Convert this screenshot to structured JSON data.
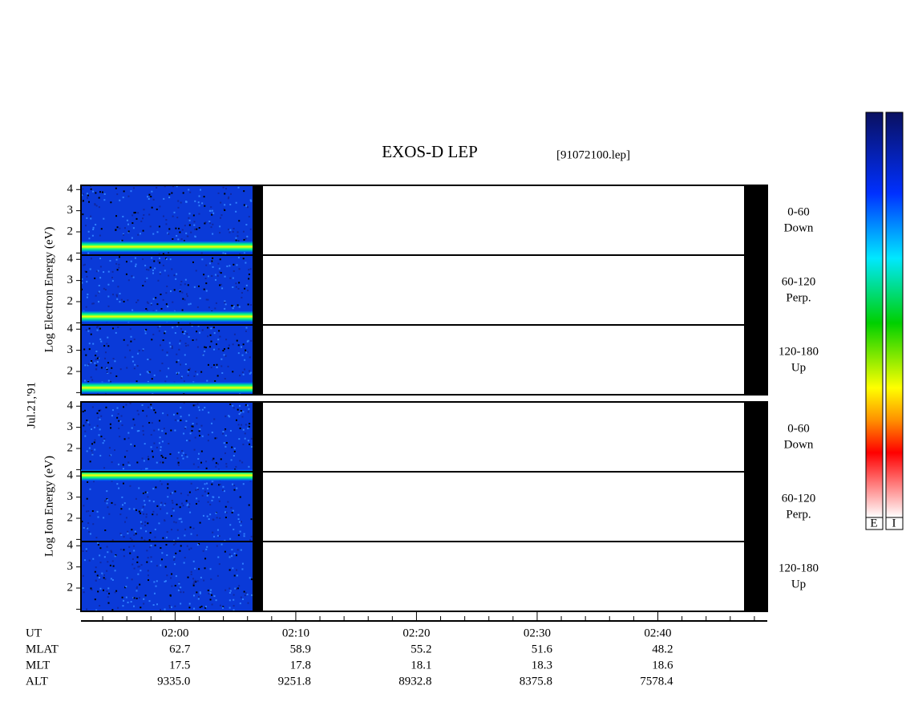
{
  "title": "EXOS-D LEP",
  "file": "[91072100.lep]",
  "date": "Jul.21,'91",
  "groups": [
    {
      "axis_label": "Log Electron Energy (eV)",
      "panels": [
        {
          "label": [
            "0-60",
            "Down"
          ]
        },
        {
          "label": [
            "60-120",
            "Perp."
          ]
        },
        {
          "label": [
            "120-180",
            "Up"
          ]
        }
      ]
    },
    {
      "axis_label": "Log Ion Energy (eV)",
      "panels": [
        {
          "label": [
            "0-60",
            "Down"
          ]
        },
        {
          "label": [
            "60-120",
            "Perp."
          ]
        },
        {
          "label": [
            "120-180",
            "Up"
          ]
        }
      ]
    }
  ],
  "ylim": [
    0.9,
    4.2
  ],
  "yticks": [
    2,
    3,
    4
  ],
  "yminor_ticks": [
    1
  ],
  "xlim": [
    112.2,
    169.07
  ],
  "xticks": [
    {
      "value": 120,
      "label": "02:00"
    },
    {
      "value": 130,
      "label": "02:10"
    },
    {
      "value": 140,
      "label": "02:20"
    },
    {
      "value": 150,
      "label": "02:30"
    },
    {
      "value": 160,
      "label": "02:40"
    }
  ],
  "xminor_ticks": [
    114,
    116,
    118,
    122,
    124,
    126,
    128,
    132,
    134,
    136,
    138,
    142,
    144,
    146,
    148,
    152,
    154,
    156,
    158,
    162,
    164,
    166,
    168
  ],
  "ephemeris": {
    "labels": [
      "UT",
      "MLAT",
      "MLT",
      "ALT"
    ],
    "rows": [
      [
        "62.7",
        "58.9",
        "55.2",
        "51.6",
        "48.2"
      ],
      [
        "17.5",
        "17.8",
        "18.1",
        "18.3",
        "18.6"
      ],
      [
        "9335.0",
        "9251.8",
        "8932.8",
        "8375.8",
        "7578.4"
      ]
    ]
  },
  "colorbar_labels": [
    "E",
    "I"
  ]
}
